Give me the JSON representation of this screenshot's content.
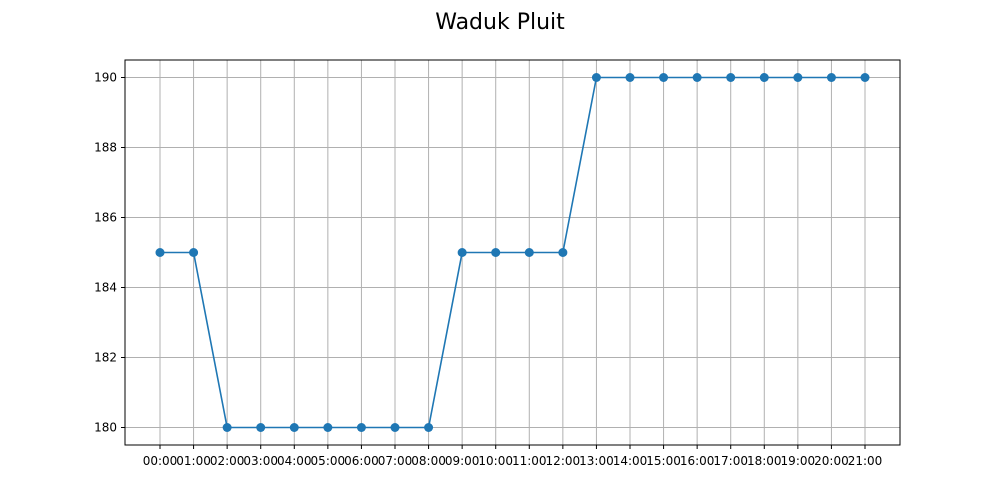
{
  "chart_data": {
    "type": "line",
    "title": "Waduk Pluit",
    "xlabel": "",
    "ylabel": "",
    "categories": [
      "00:00",
      "01:00",
      "02:00",
      "03:00",
      "04:00",
      "05:00",
      "06:00",
      "07:00",
      "08:00",
      "09:00",
      "10:00",
      "11:00",
      "12:00",
      "13:00",
      "14:00",
      "15:00",
      "16:00",
      "17:00",
      "18:00",
      "19:00",
      "20:00",
      "21:00"
    ],
    "series": [
      {
        "values": [
          185,
          185,
          180,
          180,
          180,
          180,
          180,
          180,
          180,
          185,
          185,
          185,
          185,
          190,
          190,
          190,
          190,
          190,
          190,
          190,
          190,
          190
        ]
      }
    ],
    "ylim": [
      179.5,
      190.5
    ],
    "yticks": [
      180,
      182,
      184,
      186,
      188,
      190
    ],
    "grid": true,
    "line_color": "#1f77b4",
    "marker": "circle"
  }
}
